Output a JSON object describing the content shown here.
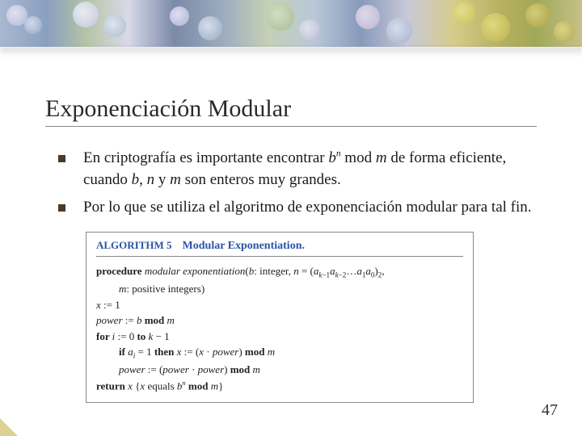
{
  "colors": {
    "title_color": "#2a2a2a",
    "bullet_color": "#4a3a28",
    "text_color": "#1a1a1a",
    "algo_header_color": "#2a55a5",
    "algo_border": "#888888",
    "corner_accent": "#c8b858",
    "background": "#ffffff"
  },
  "typography": {
    "title_fontsize": 30,
    "body_fontsize": 19,
    "algo_fontsize": 13,
    "pagenum_fontsize": 20,
    "family": "serif"
  },
  "title": "Exponenciación Modular",
  "bullets": [
    {
      "prefix": "En criptografía es importante encontrar ",
      "expr_b": "b",
      "expr_sup": "n",
      "expr_mod": " mod ",
      "expr_m": "m",
      "mid": " de forma eficiente, cuando ",
      "v1": "b",
      "sep1": ", ",
      "v2": "n",
      "sep2": " y ",
      "v3": "m",
      "tail": " son enteros muy grandes."
    },
    {
      "text": "Por lo que se utiliza el algoritmo de exponenciación modular para tal fin."
    }
  ],
  "algorithm": {
    "label_prefix": "ALGORITHM 5",
    "label_name": "Modular Exponentiation.",
    "proc_kw": "procedure ",
    "proc_name": "modular exponentiation",
    "proc_sig_open": "(",
    "proc_b": "b",
    "proc_sig_1": ": integer, ",
    "proc_n": "n",
    "proc_sig_2": " = (",
    "proc_bits": "a_{k-1}a_{k-2}\\dots a_1 a_0",
    "proc_sig_3": ")",
    "proc_sub2": "2",
    "proc_sig_4": ",",
    "proc_line2_m": "m",
    "proc_line2_tail": ": positive integers)",
    "l1_lhs": "x",
    "l1_rhs": " := 1",
    "l2_lhs": "power",
    "l2_mid": " := ",
    "l2_b": "b",
    "l2_mod": " mod ",
    "l2_m": "m",
    "for_kw": "for ",
    "for_i": "i",
    "for_mid": " := 0 ",
    "to_kw": "to ",
    "for_k": "k",
    "for_tail": " − 1",
    "if_kw": "if ",
    "if_ai": "a",
    "if_sub": "i",
    "if_eq": " = 1 ",
    "then_kw": "then ",
    "if_x": "x",
    "if_assign": " := (",
    "if_x2": "x",
    "if_dot": " · ",
    "if_pw": "power",
    "if_close": ") ",
    "if_mod": "mod ",
    "if_m": "m",
    "pw_lhs": "power",
    "pw_assign": " := (",
    "pw_p1": "power",
    "pw_dot": " · ",
    "pw_p2": "power",
    "pw_close": ") ",
    "pw_mod": "mod ",
    "pw_m": "m",
    "ret_kw": "return ",
    "ret_x": "x",
    "ret_open": " {",
    "ret_x2": "x",
    "ret_eq": " equals ",
    "ret_b": "b",
    "ret_sup": "n",
    "ret_mod": " mod ",
    "ret_m": "m",
    "ret_close": "}"
  },
  "page_number": "47"
}
